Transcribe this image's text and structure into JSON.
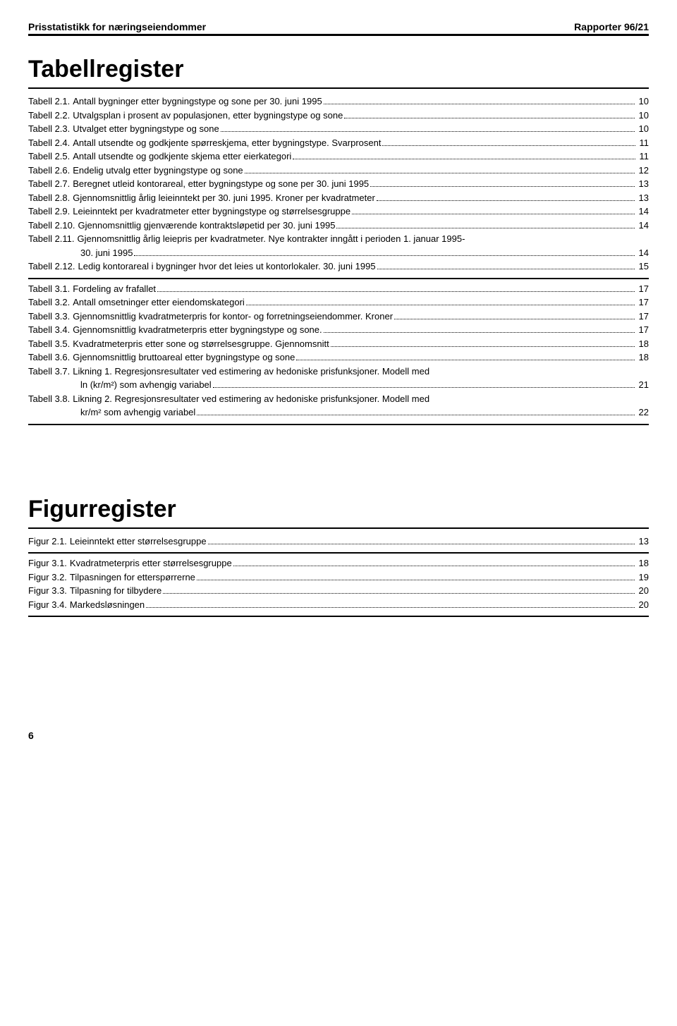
{
  "header": {
    "left": "Prisstatistikk for næringseiendommer",
    "right": "Rapporter 96/21"
  },
  "registers": [
    {
      "title": "Tabellregister",
      "blocks": [
        {
          "entries": [
            {
              "label": "Tabell 2.1.",
              "desc": "Antall bygninger etter bygningstype og sone per 30. juni 1995",
              "page": "10"
            },
            {
              "label": "Tabell 2.2.",
              "desc": "Utvalgsplan i prosent av populasjonen, etter bygningstype og sone",
              "page": "10"
            },
            {
              "label": "Tabell 2.3.",
              "desc": "Utvalget etter bygningstype og sone",
              "page": "10"
            },
            {
              "label": "Tabell 2.4.",
              "desc": "Antall utsendte og godkjente spørreskjema, etter bygningstype. Svarprosent",
              "page": "11"
            },
            {
              "label": "Tabell 2.5.",
              "desc": "Antall utsendte og godkjente skjema etter eierkategori",
              "page": "11"
            },
            {
              "label": "Tabell 2.6.",
              "desc": "Endelig utvalg etter bygningstype og sone",
              "page": "12"
            },
            {
              "label": "Tabell 2.7.",
              "desc": "Beregnet utleid kontorareal, etter bygningstype og sone per 30. juni 1995",
              "page": "13"
            },
            {
              "label": "Tabell 2.8.",
              "desc": "Gjennomsnittlig årlig leieinntekt per 30. juni 1995. Kroner per kvadratmeter",
              "page": "13"
            },
            {
              "label": "Tabell 2.9.",
              "desc": "Leieinntekt per kvadratmeter etter bygningstype og størrelsesgruppe",
              "page": "14"
            },
            {
              "label": "Tabell 2.10.",
              "desc": "Gjennomsnittlig gjenværende kontraktsløpetid per 30. juni 1995",
              "page": "14"
            },
            {
              "label": "Tabell 2.11.",
              "desc": "Gjennomsnittlig årlig leiepris per kvadratmeter. Nye kontrakter inngått i perioden 1. januar 1995-",
              "cont": "30. juni 1995",
              "page": "14"
            },
            {
              "label": "Tabell 2.12.",
              "desc": "Ledig kontorareal i bygninger hvor det leies ut kontorlokaler. 30. juni 1995",
              "page": "15"
            }
          ]
        },
        {
          "entries": [
            {
              "label": "Tabell 3.1.",
              "desc": "Fordeling av frafallet",
              "page": "17"
            },
            {
              "label": "Tabell 3.2.",
              "desc": "Antall omsetninger etter eiendomskategori",
              "page": "17"
            },
            {
              "label": "Tabell 3.3.",
              "desc": "Gjennomsnittlig kvadratmeterpris for kontor- og forretningseiendommer. Kroner",
              "page": "17"
            },
            {
              "label": "Tabell 3.4.",
              "desc": "Gjennomsnittlig kvadratmeterpris etter bygningstype og sone.",
              "page": "17"
            },
            {
              "label": "Tabell 3.5.",
              "desc": "Kvadratmeterpris etter sone og størrelsesgruppe. Gjennomsnitt",
              "page": "18"
            },
            {
              "label": "Tabell 3.6.",
              "desc": "Gjennomsnittlig bruttoareal etter bygningstype og sone",
              "page": "18"
            },
            {
              "label": "Tabell 3.7.",
              "desc": "Likning 1. Regresjonsresultater ved estimering av hedoniske prisfunksjoner. Modell med",
              "cont": "ln (kr/m²) som avhengig variabel",
              "page": "21"
            },
            {
              "label": "Tabell 3.8.",
              "desc": "Likning 2. Regresjonsresultater ved estimering av hedoniske prisfunksjoner. Modell med",
              "cont": "kr/m² som avhengig variabel",
              "page": "22"
            }
          ]
        }
      ]
    },
    {
      "title": "Figurregister",
      "blocks": [
        {
          "entries": [
            {
              "label": "Figur 2.1.",
              "desc": "Leieinntekt etter størrelsesgruppe",
              "page": "13"
            }
          ]
        },
        {
          "entries": [
            {
              "label": "Figur 3.1.",
              "desc": "Kvadratmeterpris etter størrelsesgruppe",
              "page": "18"
            },
            {
              "label": "Figur 3.2.",
              "desc": "Tilpasningen for etterspørrerne",
              "page": "19"
            },
            {
              "label": "Figur 3.3.",
              "desc": "Tilpasning for tilbydere",
              "page": "20"
            },
            {
              "label": "Figur 3.4.",
              "desc": "Markedsløsningen",
              "page": "20"
            }
          ]
        }
      ]
    }
  ],
  "pageNumber": "6"
}
